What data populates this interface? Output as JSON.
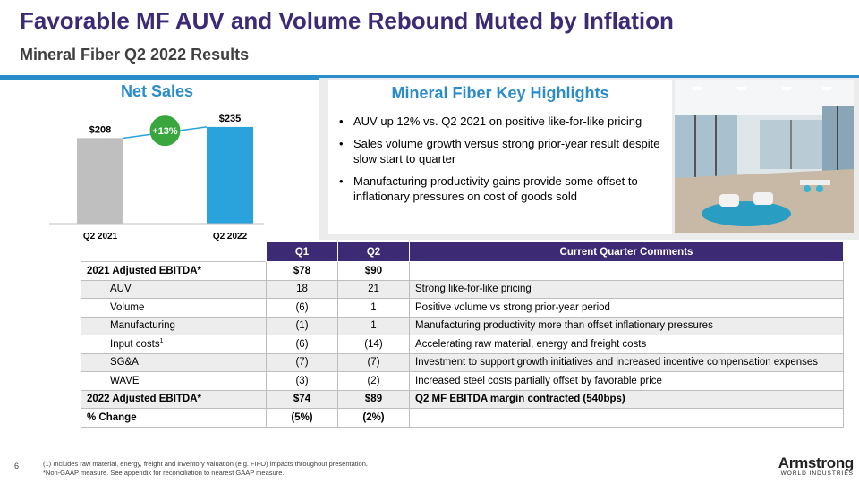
{
  "header": {
    "title": "Favorable MF AUV and Volume Rebound Muted by Inflation",
    "subtitle": "Mineral Fiber Q2 2022 Results"
  },
  "chart_data": {
    "type": "bar",
    "title": "Net Sales",
    "categories": [
      "Q2 2021",
      "Q2 2022"
    ],
    "values": [
      208,
      235
    ],
    "data_labels": [
      "$208",
      "$235"
    ],
    "colors": [
      "#bfbfbf",
      "#2aa2dc"
    ],
    "ylim": [
      0,
      250
    ],
    "annotation": "+13%",
    "annotation_color": "#3aa63e"
  },
  "highlights": {
    "title": "Mineral Fiber Key Highlights",
    "items": [
      "AUV up 12% vs. Q2 2021 on positive like-for-like pricing",
      "Sales volume growth versus strong prior-year result despite slow start to quarter",
      "Manufacturing productivity gains provide some offset to inflationary pressures on cost of goods sold"
    ]
  },
  "table": {
    "headers": [
      "",
      "Q1",
      "Q2",
      "Current Quarter Comments"
    ],
    "rows": [
      {
        "label": "2021 Adjusted EBITDA*",
        "q1": "$78",
        "q2": "$90",
        "comment": "",
        "bold": true,
        "indent": false
      },
      {
        "label": "AUV",
        "q1": "18",
        "q2": "21",
        "comment": "Strong like-for-like pricing",
        "bold": false,
        "indent": true
      },
      {
        "label": "Volume",
        "q1": "(6)",
        "q2": "1",
        "comment": "Positive volume vs strong prior-year period",
        "bold": false,
        "indent": true
      },
      {
        "label": "Manufacturing",
        "q1": "(1)",
        "q2": "1",
        "comment": "Manufacturing productivity more than offset inflationary pressures",
        "bold": false,
        "indent": true
      },
      {
        "label": "Input costs",
        "sup": "1",
        "q1": "(6)",
        "q2": "(14)",
        "comment": "Accelerating raw material, energy and freight costs",
        "bold": false,
        "indent": true
      },
      {
        "label": "SG&A",
        "q1": "(7)",
        "q2": "(7)",
        "comment": "Investment to support growth initiatives and increased incentive compensation expenses",
        "bold": false,
        "indent": true
      },
      {
        "label": "WAVE",
        "q1": "(3)",
        "q2": "(2)",
        "comment": "Increased steel costs partially offset by favorable price",
        "bold": false,
        "indent": true
      },
      {
        "label": "2022 Adjusted EBITDA*",
        "q1": "$74",
        "q2": "$89",
        "comment": "Q2 MF EBITDA margin contracted (540bps)",
        "bold": true,
        "indent": false
      },
      {
        "label": "% Change",
        "q1": "(5%)",
        "q2": "(2%)",
        "comment": "",
        "bold": true,
        "indent": false
      }
    ]
  },
  "footer": {
    "page_number": "6",
    "footnote_1": "(1) Includes raw material, energy, freight and inventory valuation (e.g. FIFO) impacts throughout presentation.",
    "footnote_2": "*Non-GAAP measure. See appendix for reconciliation to nearest GAAP measure.",
    "logo_main": "Armstrong",
    "logo_sub": "WORLD INDUSTRIES"
  },
  "photo": {
    "icon": "office-interior-photo"
  }
}
